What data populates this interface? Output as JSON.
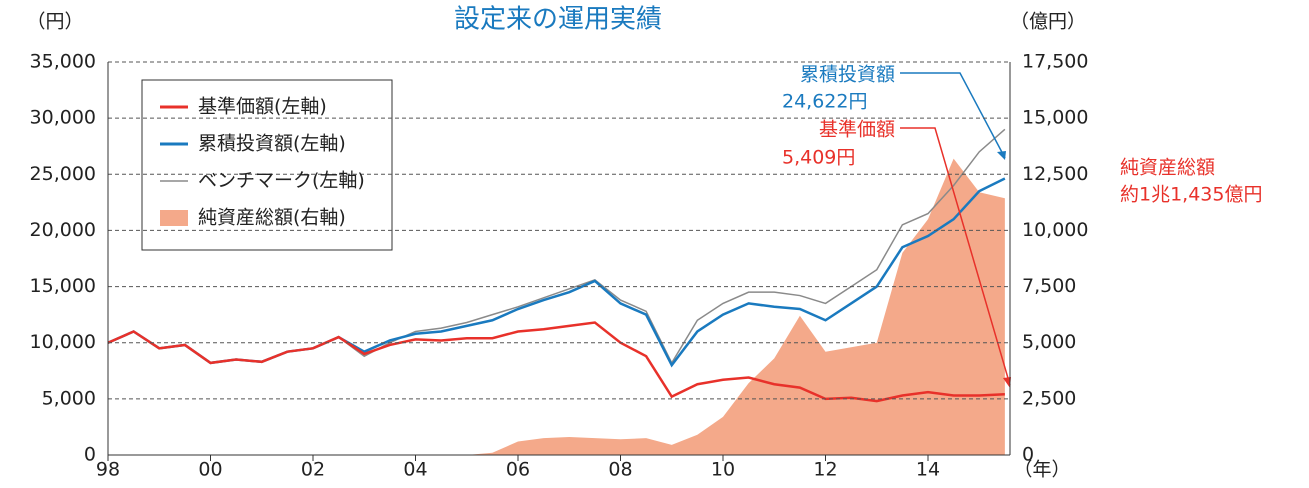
{
  "chart_data": {
    "type": "line",
    "title": "設定来の運用実績",
    "y_unit": "（円）",
    "y2_unit": "（億円）",
    "x_unit": "（年）",
    "xlim": [
      1998,
      2015.6
    ],
    "xticks": [
      {
        "value": 1998,
        "label": "98"
      },
      {
        "value": 2000,
        "label": "00"
      },
      {
        "value": 2002,
        "label": "02"
      },
      {
        "value": 2004,
        "label": "04"
      },
      {
        "value": 2006,
        "label": "06"
      },
      {
        "value": 2008,
        "label": "08"
      },
      {
        "value": 2010,
        "label": "10"
      },
      {
        "value": 2012,
        "label": "12"
      },
      {
        "value": 2014,
        "label": "14"
      }
    ],
    "ylim": [
      0,
      35000
    ],
    "yticks": [
      0,
      {
        "value": 5000,
        "label": "5,000"
      },
      {
        "value": 10000,
        "label": "10,000"
      },
      {
        "value": 15000,
        "label": "15,000"
      },
      {
        "value": 20000,
        "label": "20,000"
      },
      {
        "value": 25000,
        "label": "25,000"
      },
      {
        "value": 30000,
        "label": "30,000"
      },
      {
        "value": 35000,
        "label": "35,000"
      }
    ],
    "y2lim": [
      0,
      17500
    ],
    "y2ticks": [
      0,
      {
        "value": 2500,
        "label": "2,500"
      },
      {
        "value": 5000,
        "label": "5,000"
      },
      {
        "value": 7500,
        "label": "7,500"
      },
      {
        "value": 10000,
        "label": "10,000"
      },
      {
        "value": 12500,
        "label": "12,500"
      },
      {
        "value": 15000,
        "label": "15,000"
      },
      {
        "value": 17500,
        "label": "17,500"
      }
    ],
    "grid": true,
    "x": [
      1998,
      1998.5,
      1999,
      1999.5,
      2000,
      2000.5,
      2001,
      2001.5,
      2002,
      2002.5,
      2003,
      2003.5,
      2004,
      2004.5,
      2005,
      2005.5,
      2006,
      2006.5,
      2007,
      2007.5,
      2008,
      2008.5,
      2009,
      2009.5,
      2010,
      2010.5,
      2011,
      2011.5,
      2012,
      2012.5,
      2013,
      2013.5,
      2014,
      2014.5,
      2015,
      2015.5
    ],
    "series": [
      {
        "name": "純資産総額(右軸)",
        "type": "area",
        "axis": "y2",
        "color": "#f4a98a",
        "values": [
          0,
          0,
          0,
          0,
          0,
          0,
          0,
          0,
          0,
          0,
          0,
          0,
          0,
          0,
          0,
          100,
          600,
          750,
          800,
          750,
          700,
          750,
          450,
          900,
          1700,
          3200,
          4300,
          6200,
          4600,
          4800,
          5000,
          9000,
          10500,
          13200,
          11700,
          11435
        ]
      },
      {
        "name": "ベンチマーク(左軸)",
        "type": "line",
        "color": "#8a8a8a",
        "values": [
          10000,
          11000,
          9500,
          9800,
          8200,
          8500,
          8300,
          9200,
          9500,
          10500,
          8800,
          10000,
          11000,
          11300,
          11800,
          12500,
          13200,
          14000,
          14800,
          15600,
          13800,
          12800,
          8200,
          12000,
          13500,
          14500,
          14500,
          14200,
          13500,
          15000,
          16500,
          20500,
          21500,
          24000,
          27000,
          29000
        ]
      },
      {
        "name": "累積投資額(左軸)",
        "type": "line",
        "color": "#1a7abf",
        "values": [
          10000,
          11000,
          9500,
          9800,
          8200,
          8500,
          8300,
          9200,
          9500,
          10500,
          9200,
          10200,
          10800,
          11000,
          11500,
          12000,
          13000,
          13800,
          14500,
          15500,
          13500,
          12500,
          8000,
          11000,
          12500,
          13500,
          13200,
          13000,
          12000,
          13500,
          15000,
          18500,
          19500,
          21000,
          23500,
          24622
        ]
      },
      {
        "name": "基準価額(左軸)",
        "type": "line",
        "color": "#e8312a",
        "values": [
          10000,
          11000,
          9500,
          9800,
          8200,
          8500,
          8300,
          9200,
          9500,
          10500,
          9000,
          9800,
          10300,
          10200,
          10400,
          10400,
          11000,
          11200,
          11500,
          11800,
          10000,
          8800,
          5200,
          6300,
          6700,
          6900,
          6300,
          6000,
          5000,
          5100,
          4800,
          5300,
          5600,
          5300,
          5300,
          5409
        ]
      }
    ],
    "legend_order": [
      3,
      2,
      1,
      0
    ],
    "annotations": [
      {
        "title": "累積投資額",
        "text": "24,622円",
        "color": "#1a7abf"
      },
      {
        "title": "基準価額",
        "text": "5,409円",
        "color": "#e8312a"
      },
      {
        "title": "純資産総額",
        "text": "約1兆1,435億円",
        "color": "#e8312a"
      }
    ]
  }
}
